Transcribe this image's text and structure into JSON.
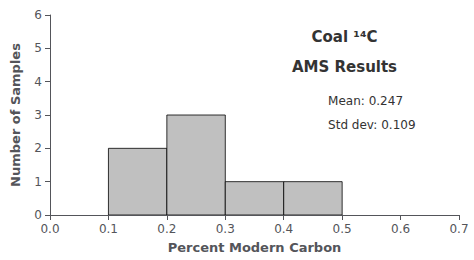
{
  "chart_data": {
    "type": "histogram",
    "title": "Coal ¹⁴C",
    "subtitle": "AMS Results",
    "xlabel": "Percent Modern Carbon",
    "ylabel": "Number of Samples",
    "bins": [
      0.1,
      0.2,
      0.3,
      0.4,
      0.5
    ],
    "values": [
      2,
      3,
      1,
      1
    ],
    "color": "#c0c0c0",
    "xlim": [
      0,
      0.7
    ],
    "ylim": [
      0,
      6
    ],
    "xticks": [
      {
        "value": 0,
        "label": "0.0"
      },
      0.1,
      0.2,
      0.3,
      0.4,
      0.5,
      0.6,
      0.7
    ],
    "yticks": [
      0,
      1,
      2,
      3,
      4,
      5,
      6
    ],
    "annotations": [
      "Mean: 0.247",
      "Std dev: 0.109"
    ],
    "grid": false
  }
}
